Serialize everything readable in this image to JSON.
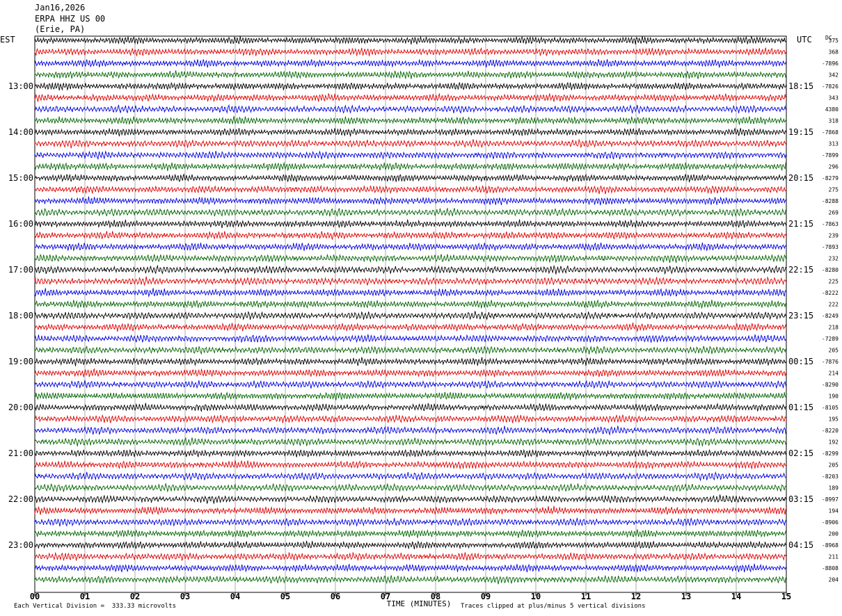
{
  "header": {
    "date": "Jan16,2026",
    "station": "ERPA HHZ US 00",
    "location": "(Erie, PA)"
  },
  "labels": {
    "left_zone": "EST",
    "right_zone": "UTC",
    "dc": "DC"
  },
  "footer": {
    "scale_note": "Each Vertical Division =  333.33 microvolts",
    "clip_note": "Traces clipped at plus/minus 5 vertical divisions"
  },
  "chart_data": {
    "type": "line",
    "title": "",
    "xlabel": "TIME (MINUTES)",
    "xlim": [
      0,
      15
    ],
    "x_ticks": [
      "00",
      "01",
      "02",
      "03",
      "04",
      "05",
      "06",
      "07",
      "08",
      "09",
      "10",
      "11",
      "12",
      "13",
      "14",
      "15"
    ],
    "trace_colors": [
      "#000000",
      "#dd0000",
      "#0000dd",
      "#006400"
    ],
    "traces_per_hour": 4,
    "left_hour_labels": [
      {
        "row": 0,
        "text": ""
      },
      {
        "row": 4,
        "text": "13:00"
      },
      {
        "row": 8,
        "text": "14:00"
      },
      {
        "row": 12,
        "text": "15:00"
      },
      {
        "row": 16,
        "text": "16:00"
      },
      {
        "row": 20,
        "text": "17:00"
      },
      {
        "row": 24,
        "text": "18:00"
      },
      {
        "row": 28,
        "text": "19:00"
      },
      {
        "row": 32,
        "text": "20:00"
      },
      {
        "row": 36,
        "text": "21:00"
      },
      {
        "row": 40,
        "text": "22:00"
      },
      {
        "row": 44,
        "text": "23:00"
      }
    ],
    "right_hour_labels": [
      {
        "row": 4,
        "text": "18:15"
      },
      {
        "row": 8,
        "text": "19:15"
      },
      {
        "row": 12,
        "text": "20:15"
      },
      {
        "row": 16,
        "text": "21:15"
      },
      {
        "row": 20,
        "text": "22:15"
      },
      {
        "row": 24,
        "text": "23:15"
      },
      {
        "row": 28,
        "text": "00:15"
      },
      {
        "row": 32,
        "text": "01:15"
      },
      {
        "row": 36,
        "text": "02:15"
      },
      {
        "row": 40,
        "text": "03:15"
      },
      {
        "row": 44,
        "text": "04:15"
      }
    ],
    "dc_offsets": [
      "375",
      "368",
      "-7896",
      "342",
      "-7826",
      "343",
      "4380",
      "318",
      "-7868",
      "313",
      "-7899",
      "296",
      "-8279",
      "275",
      "-8288",
      "269",
      "-7863",
      "239",
      "-7893",
      "232",
      "-8280",
      "225",
      "-8222",
      "222",
      "-8249",
      "218",
      "-7289",
      "205",
      "-7876",
      "214",
      "-8290",
      "190",
      "-8105",
      "195",
      "-8220",
      "192",
      "-8299",
      "205",
      "-8203",
      "189",
      "-8997",
      "194",
      "-8906",
      "200",
      "-8968",
      "211",
      "-8808",
      "204"
    ]
  }
}
